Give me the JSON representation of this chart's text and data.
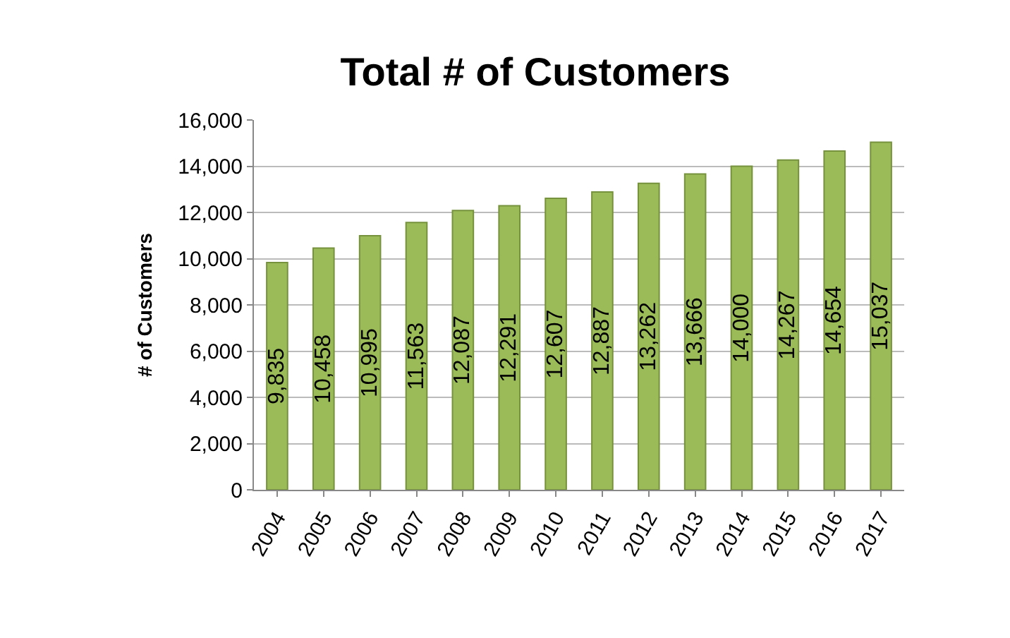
{
  "chart_data": {
    "type": "bar",
    "title": "Total # of Customers",
    "ylabel": "# of Customers",
    "categories": [
      "2004",
      "2005",
      "2006",
      "2007",
      "2008",
      "2009",
      "2010",
      "2011",
      "2012",
      "2013",
      "2014",
      "2015",
      "2016",
      "2017"
    ],
    "values": [
      9835,
      10458,
      10995,
      11563,
      12087,
      12291,
      12607,
      12887,
      13262,
      13666,
      14000,
      14267,
      14654,
      15037
    ],
    "value_labels": [
      "9,835",
      "10,458",
      "10,995",
      "11,563",
      "12,087",
      "12,291",
      "12,607",
      "12,887",
      "13,262",
      "13,666",
      "14,000",
      "14,267",
      "14,654",
      "15,037"
    ],
    "color": "#9bbb59",
    "ylim": [
      0,
      16000
    ],
    "yticks": [
      {
        "value": 0,
        "label": "0"
      },
      {
        "value": 2000,
        "label": "2,000"
      },
      {
        "value": 4000,
        "label": "4,000"
      },
      {
        "value": 6000,
        "label": "6,000"
      },
      {
        "value": 8000,
        "label": "8,000"
      },
      {
        "value": 10000,
        "label": "10,000"
      },
      {
        "value": 12000,
        "label": "12,000"
      },
      {
        "value": 14000,
        "label": "14,000"
      },
      {
        "value": 16000,
        "label": "16,000"
      }
    ],
    "grid": true
  }
}
